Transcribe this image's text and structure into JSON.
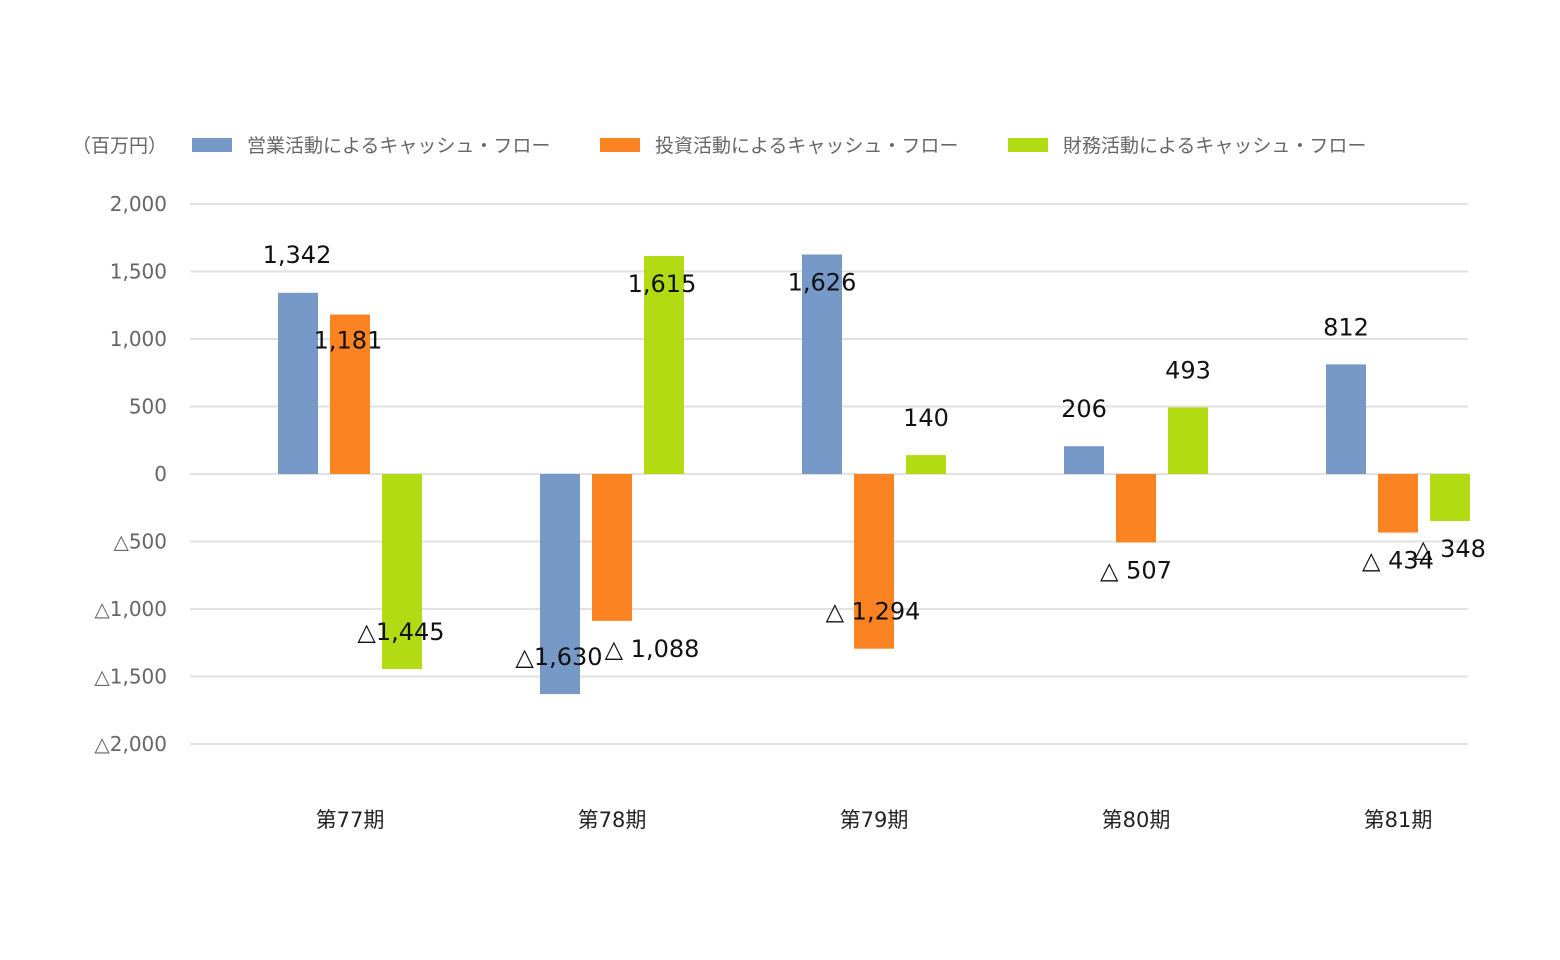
{
  "chart_data": {
    "type": "bar",
    "unit_label": "（百万円）",
    "categories": [
      "第77期",
      "第78期",
      "第79期",
      "第80期",
      "第81期"
    ],
    "series": [
      {
        "name": "営業活動によるキャッシュ・フロー",
        "color": "#7699c8",
        "values": [
          1342,
          -1630,
          1626,
          206,
          812
        ]
      },
      {
        "name": "投資活動によるキャッシュ・フロー",
        "color": "#fc8322",
        "values": [
          1181,
          -1088,
          -1294,
          -507,
          -434
        ]
      },
      {
        "name": "財務活動によるキャッシュ・フロー",
        "color": "#b3db13",
        "values": [
          -1445,
          1615,
          140,
          493,
          -348
        ]
      }
    ],
    "data_labels": [
      [
        "1,342",
        "△1,630",
        "1,626",
        "206",
        "812"
      ],
      [
        "1,181",
        "△ 1,088",
        "△ 1,294",
        "△ 507",
        "△ 434"
      ],
      [
        "△1,445",
        "1,615",
        "140",
        "493",
        "△ 348"
      ]
    ],
    "y_ticks": [
      2000,
      1500,
      1000,
      500,
      0,
      -500,
      -1000,
      -1500,
      -2000
    ],
    "y_tick_labels": [
      "2,000",
      "1,500",
      "1,000",
      "500",
      "0",
      "△500",
      "△1,000",
      "△1,500",
      "△2,000"
    ],
    "ylim": [
      -2000,
      2000
    ],
    "grid": true,
    "legend_position": "top"
  }
}
